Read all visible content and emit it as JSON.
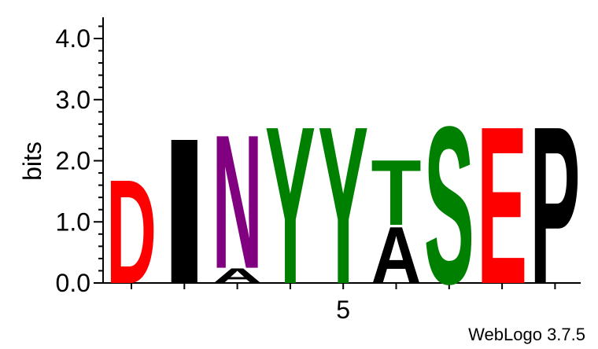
{
  "chart_data": {
    "type": "sequence-logo",
    "ylabel": "bits",
    "ylim": [
      0,
      4.0
    ],
    "y_ticks": [
      "0.0",
      "1.0",
      "2.0",
      "3.0",
      "4.0"
    ],
    "x_tick_labels": [
      {
        "position": 5,
        "label": "5"
      }
    ],
    "positions": [
      {
        "position": 1,
        "stack": [
          {
            "letter": "D",
            "bits": 1.75
          }
        ]
      },
      {
        "position": 2,
        "stack": [
          {
            "letter": "I",
            "bits": 2.45
          }
        ]
      },
      {
        "position": 3,
        "stack": [
          {
            "letter": "A",
            "bits": 0.25
          },
          {
            "letter": "N",
            "bits": 2.25
          }
        ]
      },
      {
        "position": 4,
        "stack": [
          {
            "letter": "Y",
            "bits": 2.65
          }
        ]
      },
      {
        "position": 5,
        "stack": [
          {
            "letter": "Y",
            "bits": 2.65
          }
        ]
      },
      {
        "position": 6,
        "stack": [
          {
            "letter": "A",
            "bits": 0.95
          },
          {
            "letter": "T",
            "bits": 1.1
          }
        ]
      },
      {
        "position": 7,
        "stack": [
          {
            "letter": "S",
            "bits": 2.65
          }
        ]
      },
      {
        "position": 8,
        "stack": [
          {
            "letter": "E",
            "bits": 2.65
          }
        ]
      },
      {
        "position": 9,
        "stack": [
          {
            "letter": "P",
            "bits": 2.65
          }
        ]
      }
    ],
    "letter_colors": {
      "D": "#ff0000",
      "E": "#ff0000",
      "I": "#000000",
      "A": "#000000",
      "P": "#000000",
      "N": "#800080",
      "Y": "#008000",
      "T": "#008000",
      "S": "#008000"
    }
  },
  "credit": "WebLogo 3.7.5"
}
